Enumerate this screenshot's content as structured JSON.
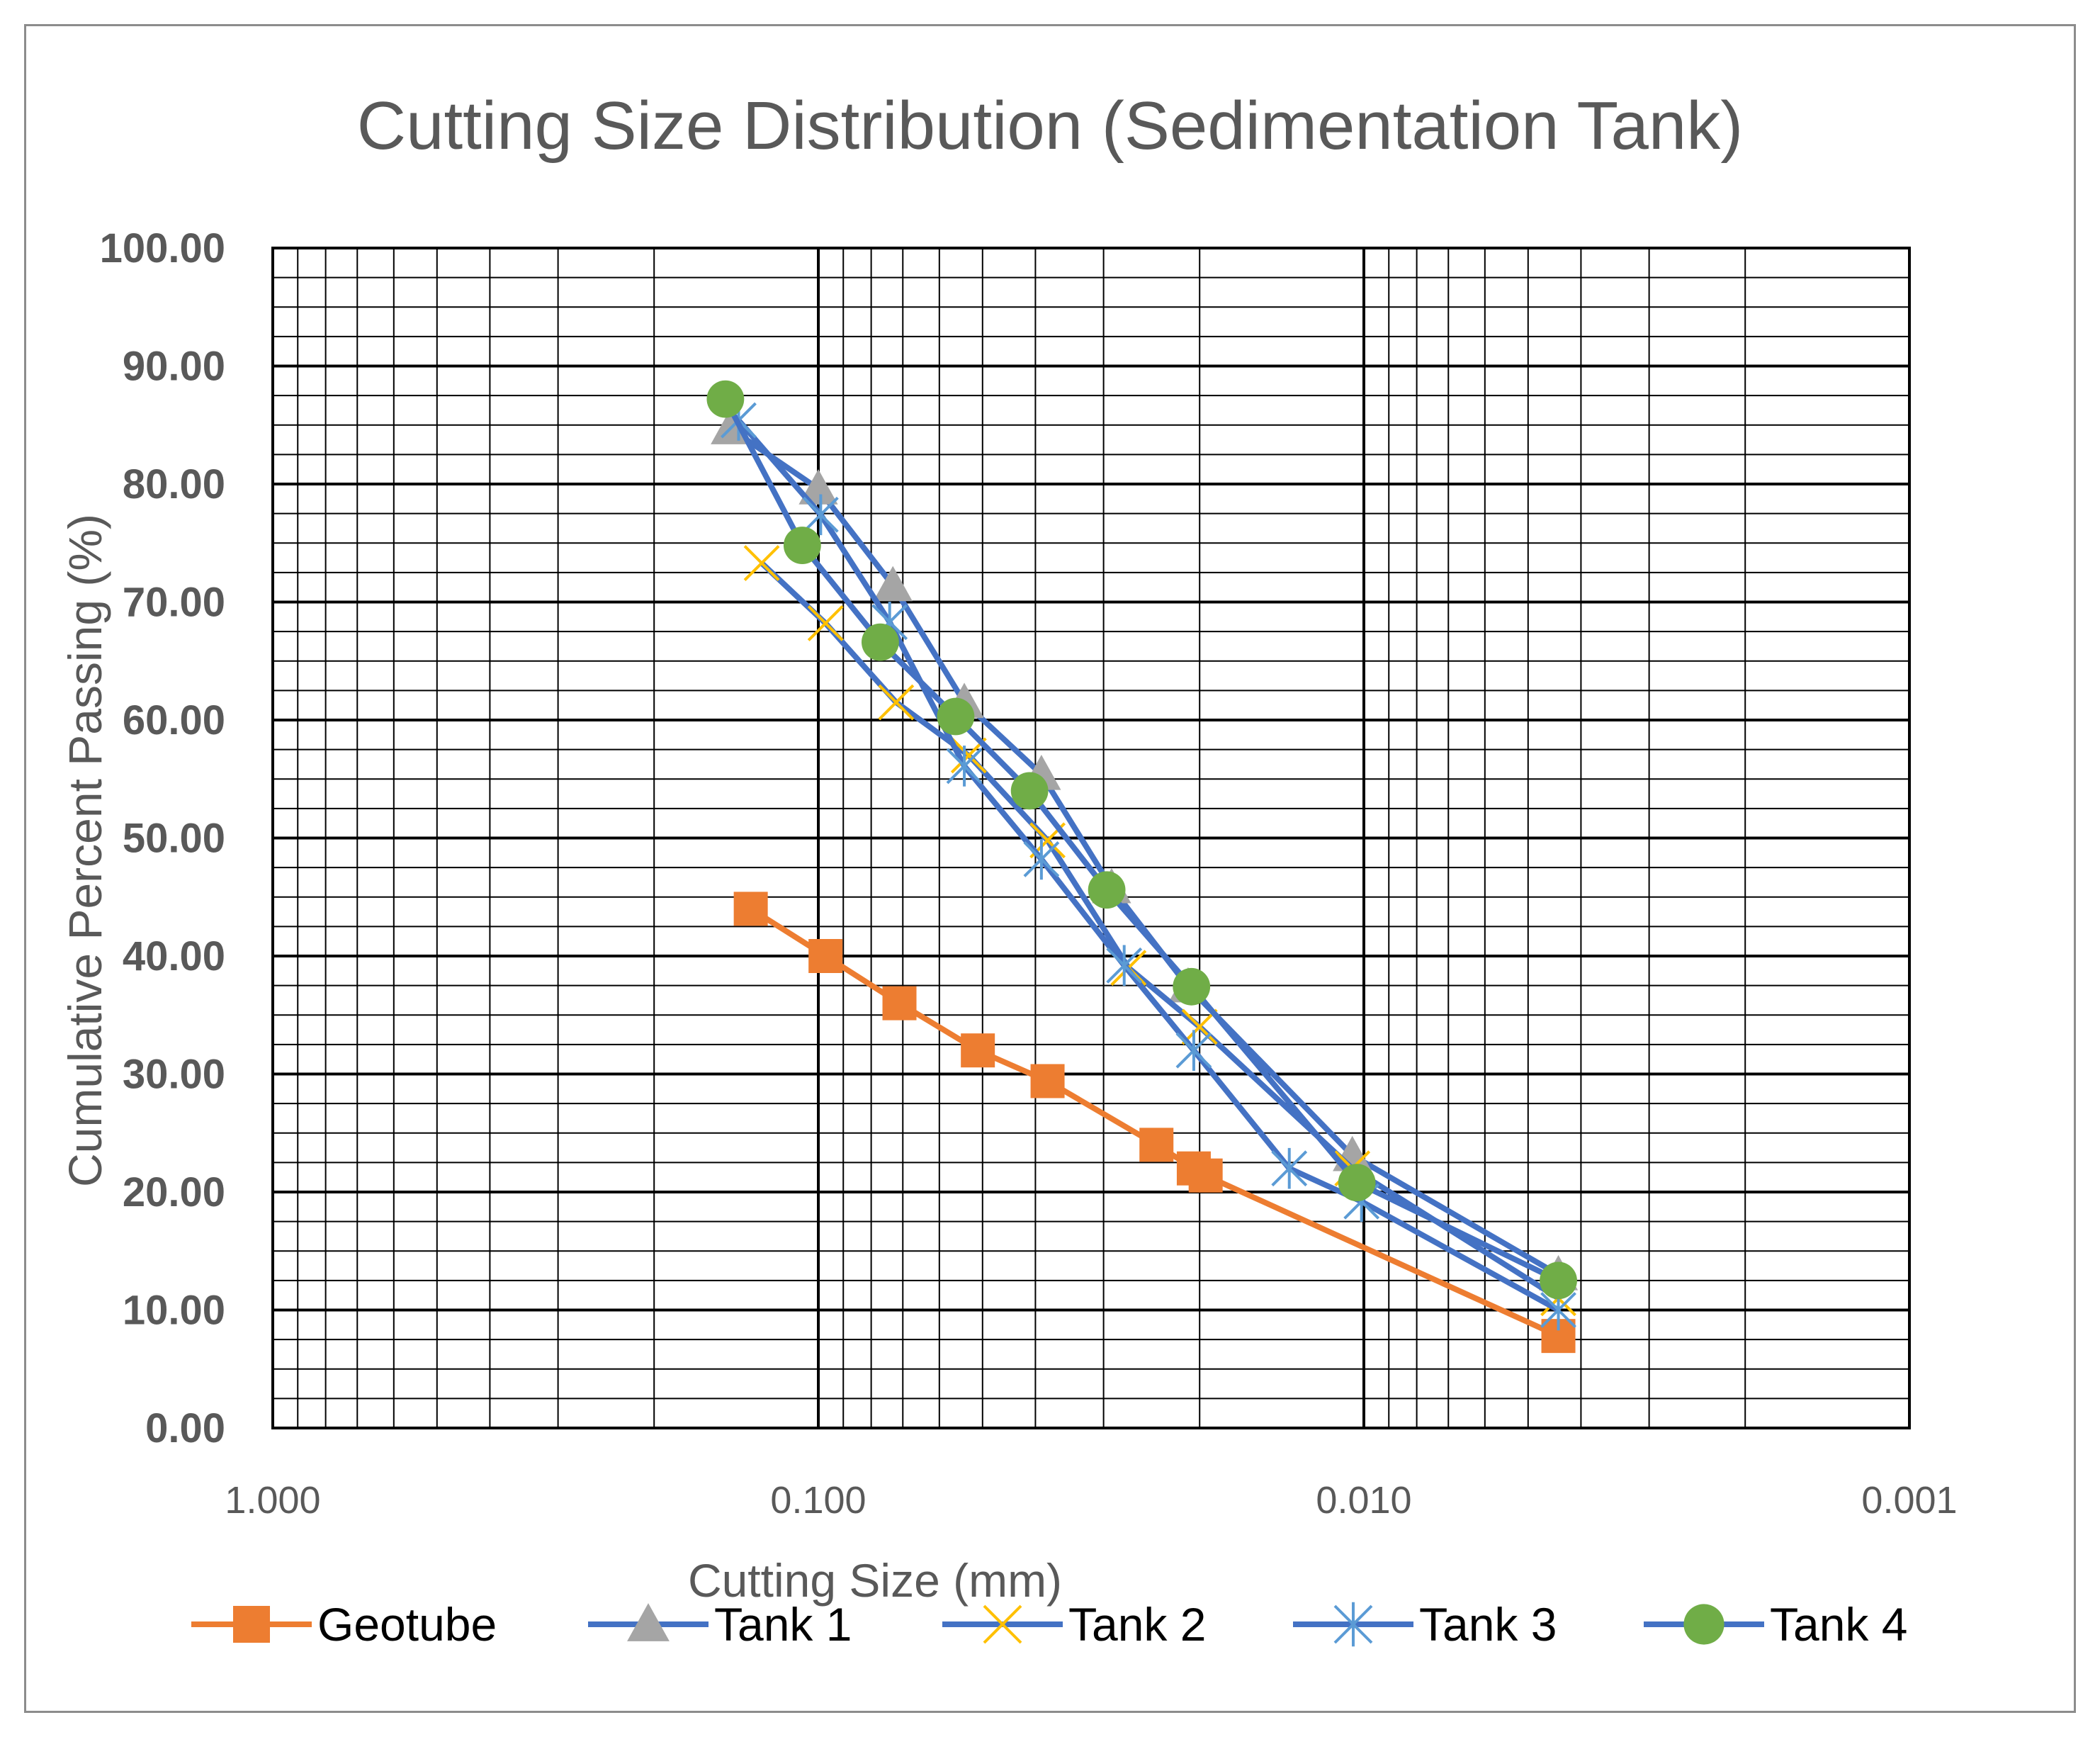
{
  "chart_data": {
    "type": "line",
    "title": "Cutting Size Distribution (Sedimentation Tank)",
    "xlabel": "Cutting Size (mm)",
    "ylabel": "Cumulative Percent Passing (%)",
    "x_scale": "log",
    "x_reversed": true,
    "xlim": [
      1.0,
      0.001
    ],
    "ylim": [
      0,
      100
    ],
    "x_ticks": [
      1.0,
      0.1,
      0.01,
      0.001
    ],
    "x_tick_labels": [
      "1.000",
      "0.100",
      "0.010",
      "0.001"
    ],
    "y_ticks": [
      0,
      10,
      20,
      30,
      40,
      50,
      60,
      70,
      80,
      90,
      100
    ],
    "y_tick_labels": [
      "0.00",
      "10.00",
      "20.00",
      "30.00",
      "40.00",
      "50.00",
      "60.00",
      "70.00",
      "80.00",
      "90.00",
      "100.00"
    ],
    "grid": true,
    "legend_position": "bottom",
    "series": [
      {
        "name": "Geotube",
        "color": "#ED7D31",
        "marker": "square",
        "x": [
          0.133,
          0.097,
          0.071,
          0.051,
          0.038,
          0.024,
          0.0205,
          0.0195,
          0.0044
        ],
        "y": [
          44,
          40,
          36,
          32,
          29.4,
          24,
          22,
          21.4,
          7.8
        ]
      },
      {
        "name": "Tank 1",
        "color": "#4472C4",
        "marker": "triangle",
        "marker_color": "#A5A5A5",
        "x": [
          0.145,
          0.1,
          0.073,
          0.054,
          0.039,
          0.029,
          0.021,
          0.0105,
          0.0044
        ],
        "y": [
          84.7,
          79.6,
          71.4,
          61.5,
          55.4,
          45.8,
          37.4,
          23.1,
          13
        ]
      },
      {
        "name": "Tank 2",
        "color": "#4472C4",
        "marker": "x",
        "marker_color": "#FFC000",
        "x": [
          0.127,
          0.097,
          0.072,
          0.053,
          0.038,
          0.027,
          0.02,
          0.0105,
          0.0044
        ],
        "y": [
          73.3,
          68.2,
          61.5,
          57,
          49.8,
          39,
          34,
          22,
          11
        ]
      },
      {
        "name": "Tank 3",
        "color": "#4472C4",
        "marker": "star",
        "marker_color": "#5B9BD5",
        "x": [
          0.14,
          0.099,
          0.074,
          0.054,
          0.039,
          0.0275,
          0.0205,
          0.0137,
          0.0101,
          0.0044
        ],
        "y": [
          85.4,
          77.4,
          68.3,
          56.1,
          48.2,
          39.2,
          32,
          22,
          19.2,
          10
        ]
      },
      {
        "name": "Tank 4",
        "color": "#4472C4",
        "marker": "circle",
        "marker_color": "#70AD47",
        "x": [
          0.148,
          0.107,
          0.077,
          0.056,
          0.041,
          0.0296,
          0.0207,
          0.0103,
          0.0044
        ],
        "y": [
          87.2,
          74.8,
          66.6,
          60.3,
          54,
          45.6,
          37.4,
          20.8,
          12.5
        ]
      }
    ]
  }
}
